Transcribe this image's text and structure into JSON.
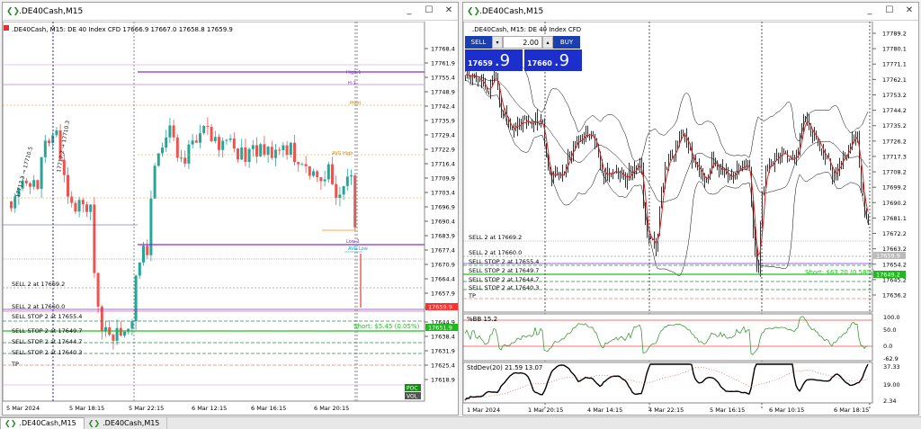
{
  "left_window": {
    "title": ".DE40Cash,M15",
    "info_line": ".DE40Cash, M15:  DE 40 Index CFD  17666.9 17667.0 17658.8 17659.9",
    "price_labels": [
      "17768.4",
      "17761.9",
      "17755.4",
      "17748.9",
      "17742.4",
      "17735.9",
      "17729.4",
      "17722.9",
      "17716.4",
      "17709.9",
      "17703.4",
      "17696.9",
      "17690.4",
      "17683.9",
      "17677.4",
      "17670.9",
      "17664.4",
      "17657.9",
      "17651.4",
      "17644.9",
      "17638.4",
      "17631.9",
      "17625.4",
      "17618.9"
    ],
    "time_labels": [
      "5 Mar 2024",
      "5 Mar 18:15",
      "5 Mar 22:15",
      "6 Mar 12:15",
      "6 Mar 16:15",
      "6 Mar 20:15"
    ],
    "order_lines": [
      "SELL 2 at 17669.2",
      "SELL 2 at 17660.0",
      "SELL STOP 2 at 17655.4",
      "SELL STOP 2 at 17649.7",
      "SELL STOP 2 at 17644.7",
      "SELL STOP 2 at 17640.3",
      "TP"
    ],
    "short_label": "Short: $5.45 (0.05%)",
    "current_price_tag": "17659.9",
    "lower_price_tag": "17651.9",
    "vertical_annotations": [
      "17717.3 → 17710.5",
      "17717.2 → 17710.3"
    ],
    "level_labels": [
      "High-1",
      "H-1",
      "Pivot",
      "AVG High",
      "Low-1",
      "AVG Low"
    ],
    "badges": [
      "POC",
      "VOL"
    ]
  },
  "right_window": {
    "title": ".DE40Cash,M15",
    "info_line": ".DE40Cash, M15:  DE 40 Index CFD",
    "trade_panel": {
      "sell_label": "SELL",
      "buy_label": "BUY",
      "volume": "2.00",
      "sell_price_small": "17659",
      "sell_price_big": ".9",
      "buy_price_small": "17660",
      "buy_price_big": ".9"
    },
    "price_labels": [
      "17789.2",
      "17780.1",
      "17771.1",
      "17762.1",
      "17753.2",
      "17744.2",
      "17735.2",
      "17726.2",
      "17717.3",
      "17708.2",
      "17699.2",
      "17690.2",
      "17681.1",
      "17672.2",
      "17663.2",
      "17654.2",
      "17645.2",
      "17636.2"
    ],
    "time_labels": [
      "1 Mar 2024",
      "1 Mar 20:15",
      "4 Mar 14:15",
      "4 Mar 22:15",
      "5 Mar 16:15",
      "6 Mar 10:15",
      "6 Mar 18:15"
    ],
    "order_lines": [
      "SELL 2 at 17669.2",
      "SELL 2 at 17660.0",
      "SELL STOP 2 at 17655.4",
      "SELL STOP 2 at 17649.7",
      "SELL STOP 2 at 17644.7",
      "SELL STOP 2 at 17640.3",
      "TP"
    ],
    "short_label": "Short: $63.20 (0.58%)",
    "current_price_tag": "17659.9",
    "lower_price_tag": "17649.2",
    "pctb_label": "%BB  15.2",
    "pctb_scale": [
      "100.0",
      "50.0",
      "0.0",
      "-62.9"
    ],
    "stddev_label": "StdDev(20) 21.59 13.07",
    "stddev_scale": [
      "37.33",
      "19.00",
      "2.34"
    ]
  },
  "tabs": [
    {
      "label": ".DE40Cash,M15",
      "active": true
    },
    {
      "label": ".DE40Cash,M15",
      "active": false
    }
  ],
  "colors": {
    "bull": "#26a69a",
    "bear": "#ef5350",
    "sell_stop_line": "#2e8b57",
    "sell_line": "#999999",
    "purple_line": "#8a2be2",
    "orange_line": "#ff8c00",
    "short_green": "#22c022",
    "price_tag_red": "#ff3030",
    "price_tag_green": "#1fb81f",
    "bb_red": "#ff4040",
    "pctb_green": "#3c9c3c"
  }
}
